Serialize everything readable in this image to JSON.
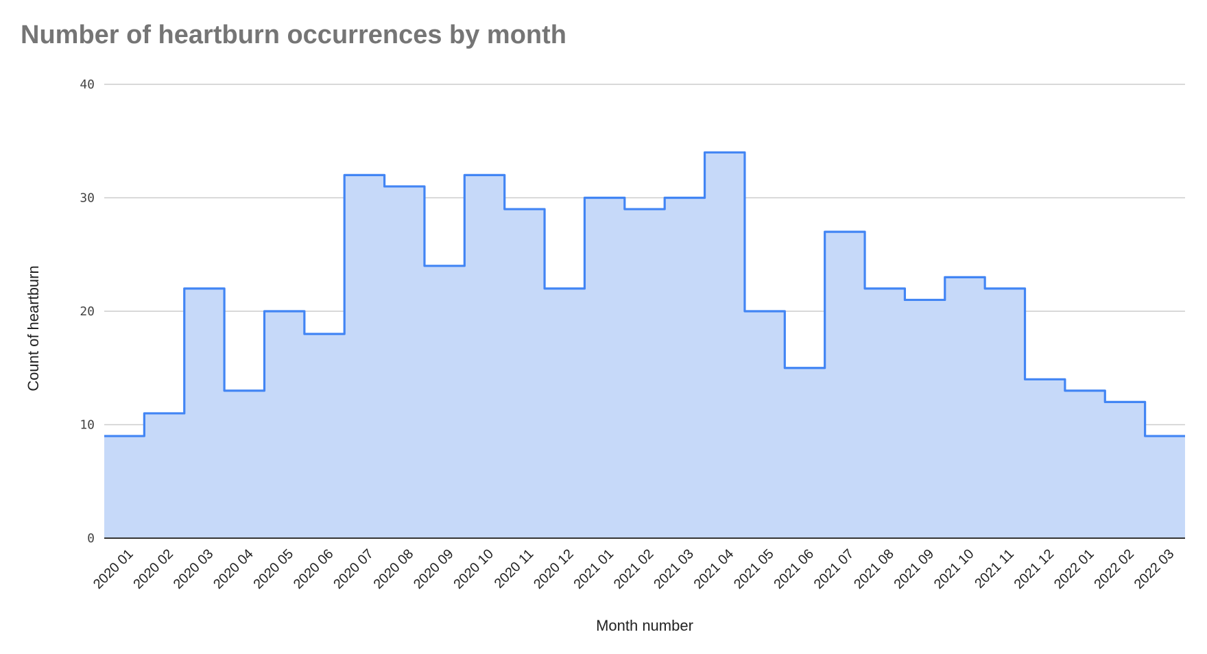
{
  "chart_data": {
    "type": "area",
    "title": "Number of heartburn occurrences by month",
    "xlabel": "Month number",
    "ylabel": "Count of heartburn",
    "ylim": [
      0,
      40
    ],
    "yticks": [
      0,
      10,
      20,
      30,
      40
    ],
    "grid": true,
    "legend": "none",
    "step": true,
    "categories": [
      "2020 01",
      "2020 02",
      "2020 03",
      "2020 04",
      "2020 05",
      "2020 06",
      "2020 07",
      "2020 08",
      "2020 09",
      "2020 10",
      "2020 11",
      "2020 12",
      "2021 01",
      "2021 02",
      "2021 03",
      "2021 04",
      "2021 05",
      "2021 06",
      "2021 07",
      "2021 08",
      "2021 09",
      "2021 10",
      "2021 11",
      "2021 12",
      "2022 01",
      "2022 02",
      "2022 03"
    ],
    "values": [
      9,
      11,
      22,
      13,
      20,
      18,
      32,
      31,
      24,
      32,
      29,
      22,
      30,
      29,
      30,
      34,
      20,
      15,
      27,
      22,
      21,
      23,
      22,
      14,
      13,
      12,
      9
    ],
    "colors": {
      "line": "#4285f4",
      "fill": "#c6d9f9",
      "grid": "#cccccc",
      "baseline": "#333333"
    }
  }
}
